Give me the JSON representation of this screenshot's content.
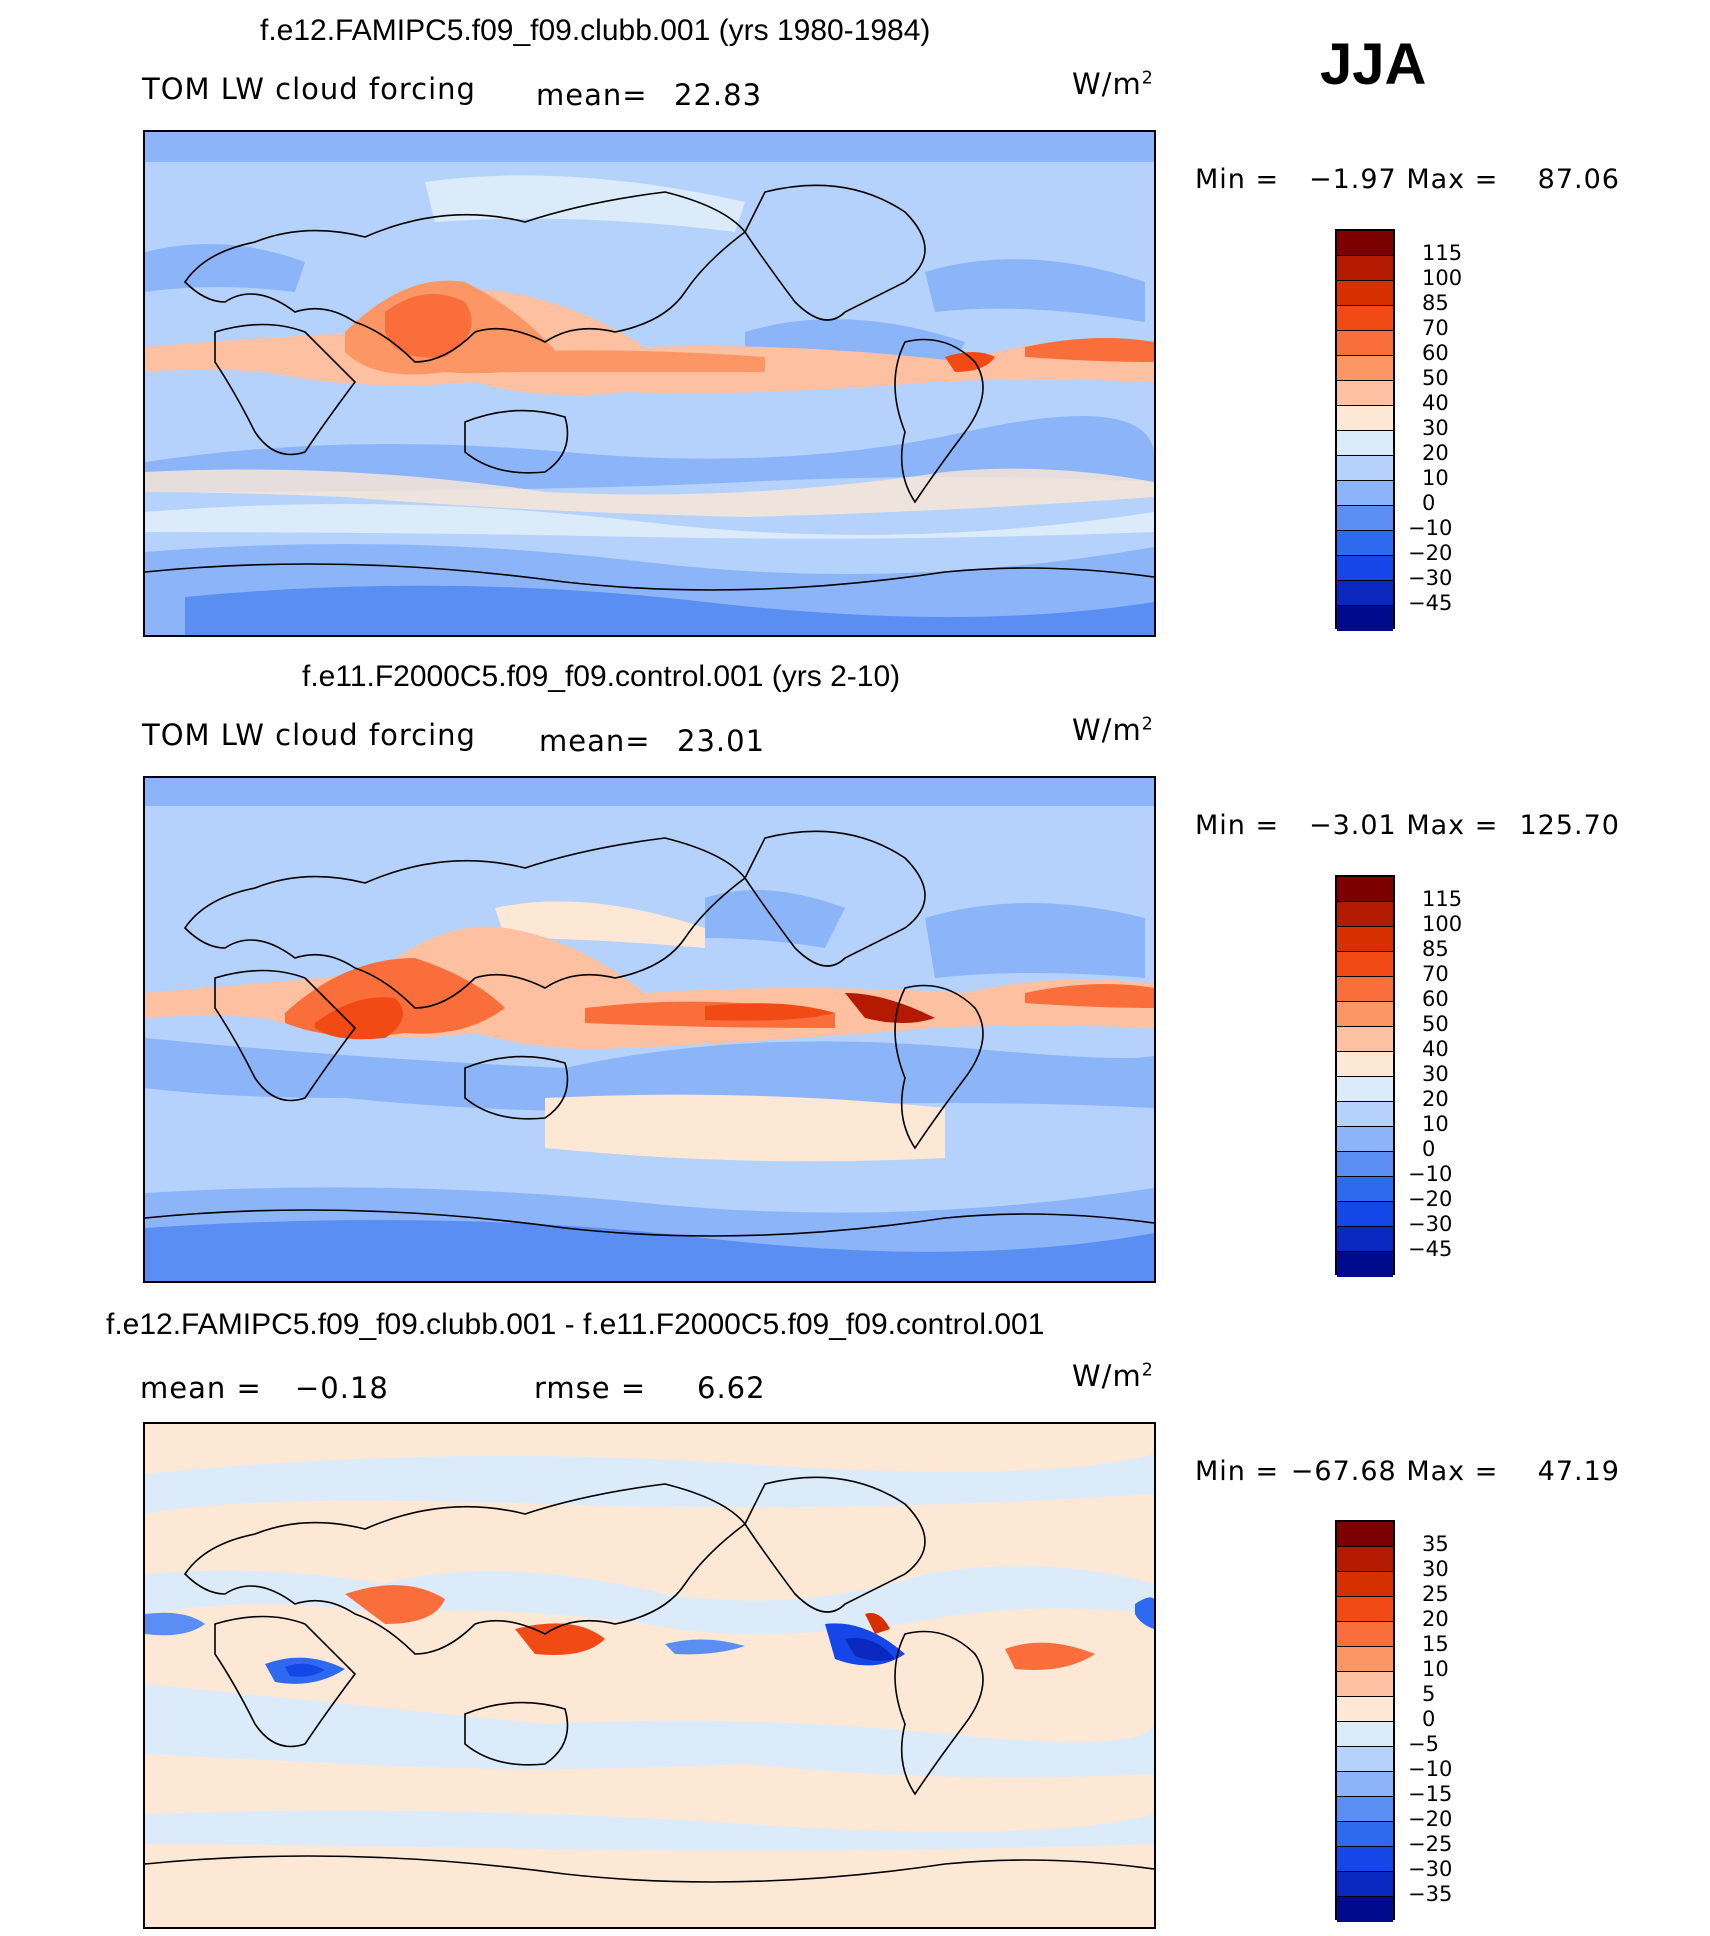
{
  "season": "JJA",
  "units_label": "W/m",
  "units_sup": "2",
  "panels": [
    {
      "title": "f.e12.FAMIPC5.f09_f09.clubb.001 (yrs 1980-1984)",
      "left_label": "TOM LW cloud forcing",
      "mean_label": "mean=",
      "mean_value": "22.83",
      "min_label": "Min =",
      "min_value": "−1.97",
      "max_label": "Max =",
      "max_value": "87.06"
    },
    {
      "title": "f.e11.F2000C5.f09_f09.control.001 (yrs 2-10)",
      "left_label": "TOM LW cloud forcing",
      "mean_label": "mean=",
      "mean_value": "23.01",
      "min_label": "Min =",
      "min_value": "−3.01",
      "max_label": "Max =",
      "max_value": "125.70"
    },
    {
      "title": "f.e12.FAMIPC5.f09_f09.clubb.001 - f.e11.F2000C5.f09_f09.control.001",
      "left_label": "mean =",
      "mean_label": "",
      "mean_value": "−0.18",
      "rmse_label": "rmse =",
      "rmse_value": "6.62",
      "min_label": "Min =",
      "min_value": "−67.68",
      "max_label": "Max =",
      "max_value": "47.19"
    }
  ],
  "colorbar_abs": {
    "labels": [
      "115",
      "100",
      "85",
      "70",
      "60",
      "50",
      "40",
      "30",
      "20",
      "10",
      "0",
      "−10",
      "−20",
      "−30",
      "−45"
    ],
    "colors": [
      "#7d0000",
      "#b31a00",
      "#d63000",
      "#f24a14",
      "#fa6e3c",
      "#fc9664",
      "#fdc0a0",
      "#fde8d6",
      "#dcebfa",
      "#b4d2fb",
      "#8cb4f8",
      "#5a8ef3",
      "#2e6af0",
      "#1446e8",
      "#0a28c0",
      "#000a8c"
    ]
  },
  "colorbar_diff": {
    "labels": [
      "35",
      "30",
      "25",
      "20",
      "15",
      "10",
      "5",
      "0",
      "−5",
      "−10",
      "−15",
      "−20",
      "−25",
      "−30",
      "−35"
    ],
    "colors": [
      "#7d0000",
      "#b31a00",
      "#d63000",
      "#f24a14",
      "#fa6e3c",
      "#fc9664",
      "#fdc0a0",
      "#fde8d6",
      "#dcebfa",
      "#b4d2fb",
      "#8cb4f8",
      "#5a8ef3",
      "#2e6af0",
      "#1446e8",
      "#0a28c0",
      "#000a8c"
    ]
  },
  "chart_data": [
    {
      "type": "heatmap",
      "title": "f.e12.FAMIPC5.f09_f09.clubb.001 (yrs 1980-1984)",
      "variable": "TOM LW cloud forcing",
      "units": "W/m2",
      "season": "JJA",
      "mean": 22.83,
      "min": -1.97,
      "max": 87.06,
      "contour_levels": [
        -45,
        -30,
        -20,
        -10,
        0,
        10,
        20,
        30,
        40,
        50,
        60,
        70,
        85,
        100,
        115
      ]
    },
    {
      "type": "heatmap",
      "title": "f.e11.F2000C5.f09_f09.control.001 (yrs 2-10)",
      "variable": "TOM LW cloud forcing",
      "units": "W/m2",
      "season": "JJA",
      "mean": 23.01,
      "min": -3.01,
      "max": 125.7,
      "contour_levels": [
        -45,
        -30,
        -20,
        -10,
        0,
        10,
        20,
        30,
        40,
        50,
        60,
        70,
        85,
        100,
        115
      ]
    },
    {
      "type": "heatmap",
      "title": "f.e12.FAMIPC5.f09_f09.clubb.001 - f.e11.F2000C5.f09_f09.control.001",
      "units": "W/m2",
      "season": "JJA",
      "mean": -0.18,
      "rmse": 6.62,
      "min": -67.68,
      "max": 47.19,
      "contour_levels": [
        -35,
        -30,
        -25,
        -20,
        -15,
        -10,
        -5,
        0,
        5,
        10,
        15,
        20,
        25,
        30,
        35
      ]
    }
  ]
}
